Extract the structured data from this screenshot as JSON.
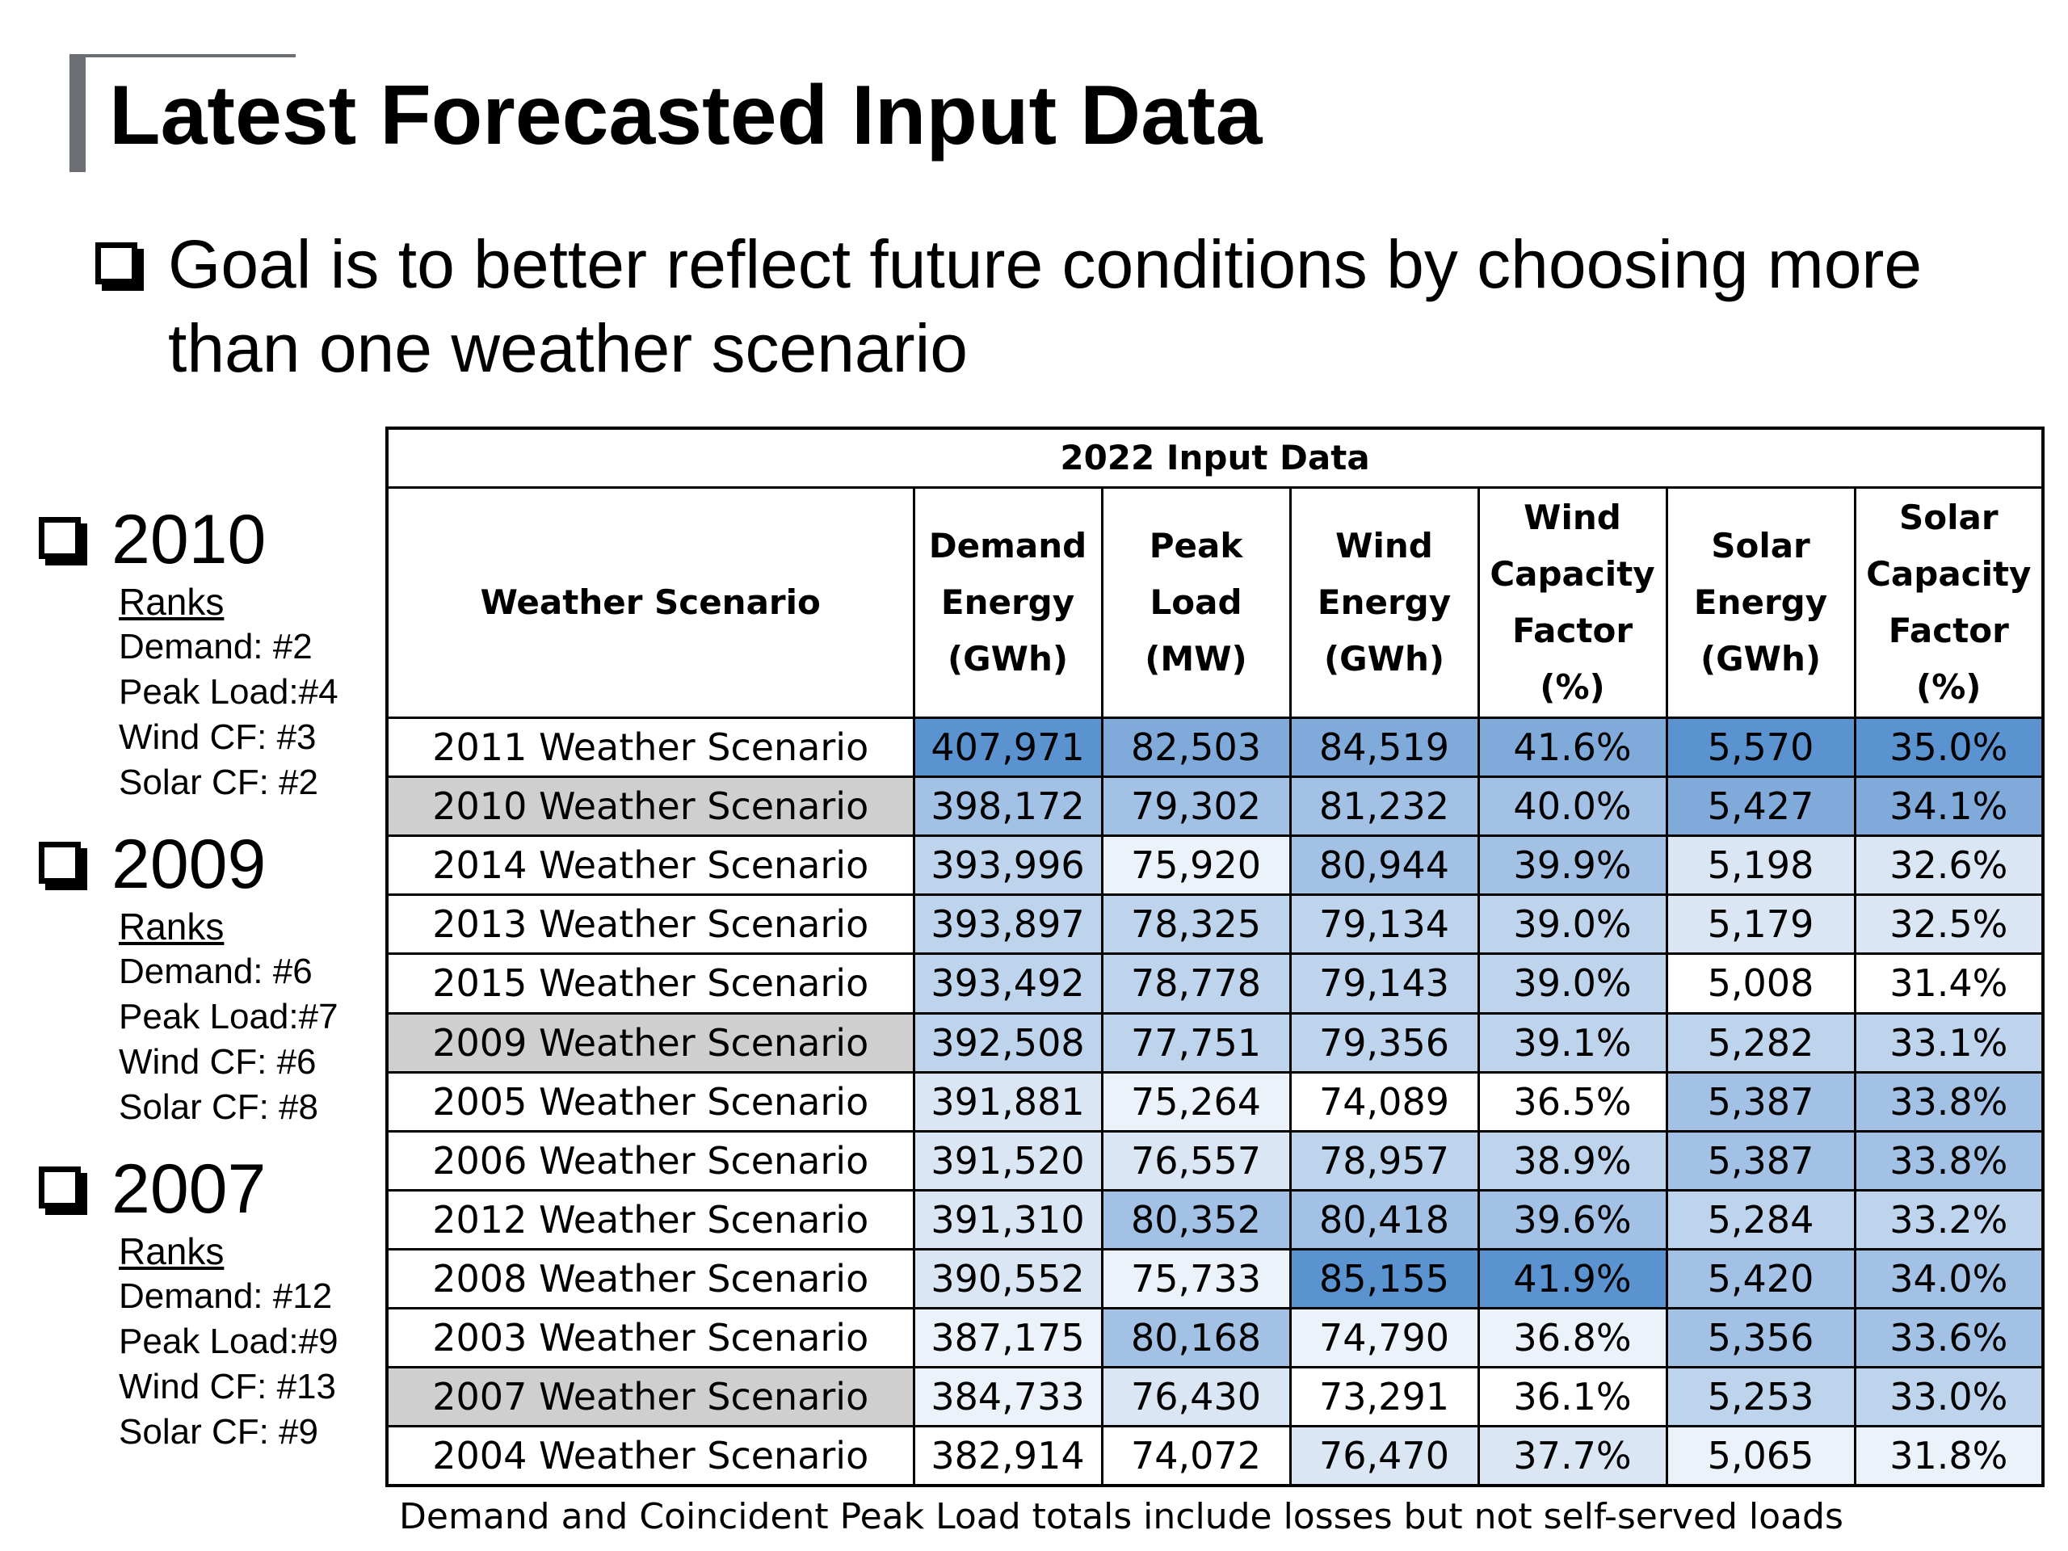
{
  "title": "Latest Forecasted Input Data",
  "goal": {
    "line1": "Goal is to better reflect future conditions by choosing more",
    "line2": "than one weather scenario"
  },
  "selected_years": [
    {
      "year": "2010",
      "ranks_label": "Ranks",
      "demand": "Demand:   #2",
      "peak_load": "Peak Load:#4",
      "wind_cf": "Wind CF:   #3",
      "solar_cf": "Solar CF:   #2"
    },
    {
      "year": "2009",
      "ranks_label": "Ranks",
      "demand": "Demand:    #6",
      "peak_load": "Peak Load:#7",
      "wind_cf": "Wind CF:   #6",
      "solar_cf": "Solar CF:   #8"
    },
    {
      "year": "2007",
      "ranks_label": "Ranks",
      "demand": "Demand:   #12",
      "peak_load": "Peak Load:#9",
      "wind_cf": "Wind CF:   #13",
      "solar_cf": "Solar CF:   #9"
    }
  ],
  "table": {
    "caption": "2022 Input Data",
    "headers": [
      [
        "Weather Scenario"
      ],
      [
        "Demand",
        "Energy",
        "(GWh)"
      ],
      [
        "Peak",
        "Load",
        "(MW)"
      ],
      [
        "Wind",
        "Energy",
        "(GWh)"
      ],
      [
        "Wind",
        "Capacity",
        "Factor",
        "(%)"
      ],
      [
        "Solar",
        "Energy",
        "(GWh)"
      ],
      [
        "Solar",
        "Capacity",
        "Factor",
        "(%)"
      ]
    ],
    "rows": [
      {
        "scenario": "2011 Weather Scenario",
        "highlight": false,
        "values": [
          "407,971",
          "82,503",
          "84,519",
          "41.6%",
          "5,570",
          "35.0%"
        ],
        "shades": [
          5,
          4,
          4,
          4,
          5,
          5
        ]
      },
      {
        "scenario": "2010 Weather Scenario",
        "highlight": true,
        "values": [
          "398,172",
          "79,302",
          "81,232",
          "40.0%",
          "5,427",
          "34.1%"
        ],
        "shades": [
          3,
          3,
          3,
          3,
          4,
          4
        ]
      },
      {
        "scenario": "2014 Weather Scenario",
        "highlight": false,
        "values": [
          "393,996",
          "75,920",
          "80,944",
          "39.9%",
          "5,198",
          "32.6%"
        ],
        "shades": [
          2,
          0,
          3,
          3,
          1,
          1
        ]
      },
      {
        "scenario": "2013 Weather Scenario",
        "highlight": false,
        "values": [
          "393,897",
          "78,325",
          "79,134",
          "39.0%",
          "5,179",
          "32.5%"
        ],
        "shades": [
          2,
          2,
          2,
          2,
          1,
          1
        ]
      },
      {
        "scenario": "2015 Weather Scenario",
        "highlight": false,
        "values": [
          "393,492",
          "78,778",
          "79,143",
          "39.0%",
          "5,008",
          "31.4%"
        ],
        "shades": [
          2,
          2,
          2,
          2,
          -1,
          -1
        ]
      },
      {
        "scenario": "2009 Weather Scenario",
        "highlight": true,
        "values": [
          "392,508",
          "77,751",
          "79,356",
          "39.1%",
          "5,282",
          "33.1%"
        ],
        "shades": [
          2,
          2,
          2,
          2,
          2,
          2
        ]
      },
      {
        "scenario": "2005 Weather Scenario",
        "highlight": false,
        "values": [
          "391,881",
          "75,264",
          "74,089",
          "36.5%",
          "5,387",
          "33.8%"
        ],
        "shades": [
          1,
          0,
          -1,
          -1,
          3,
          3
        ]
      },
      {
        "scenario": "2006 Weather Scenario",
        "highlight": false,
        "values": [
          "391,520",
          "76,557",
          "78,957",
          "38.9%",
          "5,387",
          "33.8%"
        ],
        "shades": [
          1,
          1,
          2,
          2,
          3,
          3
        ]
      },
      {
        "scenario": "2012 Weather Scenario",
        "highlight": false,
        "values": [
          "391,310",
          "80,352",
          "80,418",
          "39.6%",
          "5,284",
          "33.2%"
        ],
        "shades": [
          1,
          3,
          3,
          3,
          2,
          2
        ]
      },
      {
        "scenario": "2008 Weather Scenario",
        "highlight": false,
        "values": [
          "390,552",
          "75,733",
          "85,155",
          "41.9%",
          "5,420",
          "34.0%"
        ],
        "shades": [
          1,
          0,
          5,
          5,
          3,
          3
        ]
      },
      {
        "scenario": "2003 Weather Scenario",
        "highlight": false,
        "values": [
          "387,175",
          "80,168",
          "74,790",
          "36.8%",
          "5,356",
          "33.6%"
        ],
        "shades": [
          0,
          3,
          0,
          0,
          3,
          3
        ]
      },
      {
        "scenario": "2007 Weather Scenario",
        "highlight": true,
        "values": [
          "384,733",
          "76,430",
          "73,291",
          "36.1%",
          "5,253",
          "33.0%"
        ],
        "shades": [
          0,
          1,
          -1,
          -1,
          2,
          2
        ]
      },
      {
        "scenario": "2004 Weather Scenario",
        "highlight": false,
        "values": [
          "382,914",
          "74,072",
          "76,470",
          "37.7%",
          "5,065",
          "31.8%"
        ],
        "shades": [
          -1,
          -1,
          1,
          1,
          0,
          0
        ]
      }
    ],
    "shade_colors": {
      "-1": "#ffffff",
      "0": "#ecf2fa",
      "1": "#dbe6f5",
      "2": "#bed4ec",
      "3": "#a2c1e4",
      "4": "#7faad9",
      "5": "#5b93d0"
    }
  },
  "footnote": "Demand and Coincident Peak Load totals include losses but not self-served loads"
}
